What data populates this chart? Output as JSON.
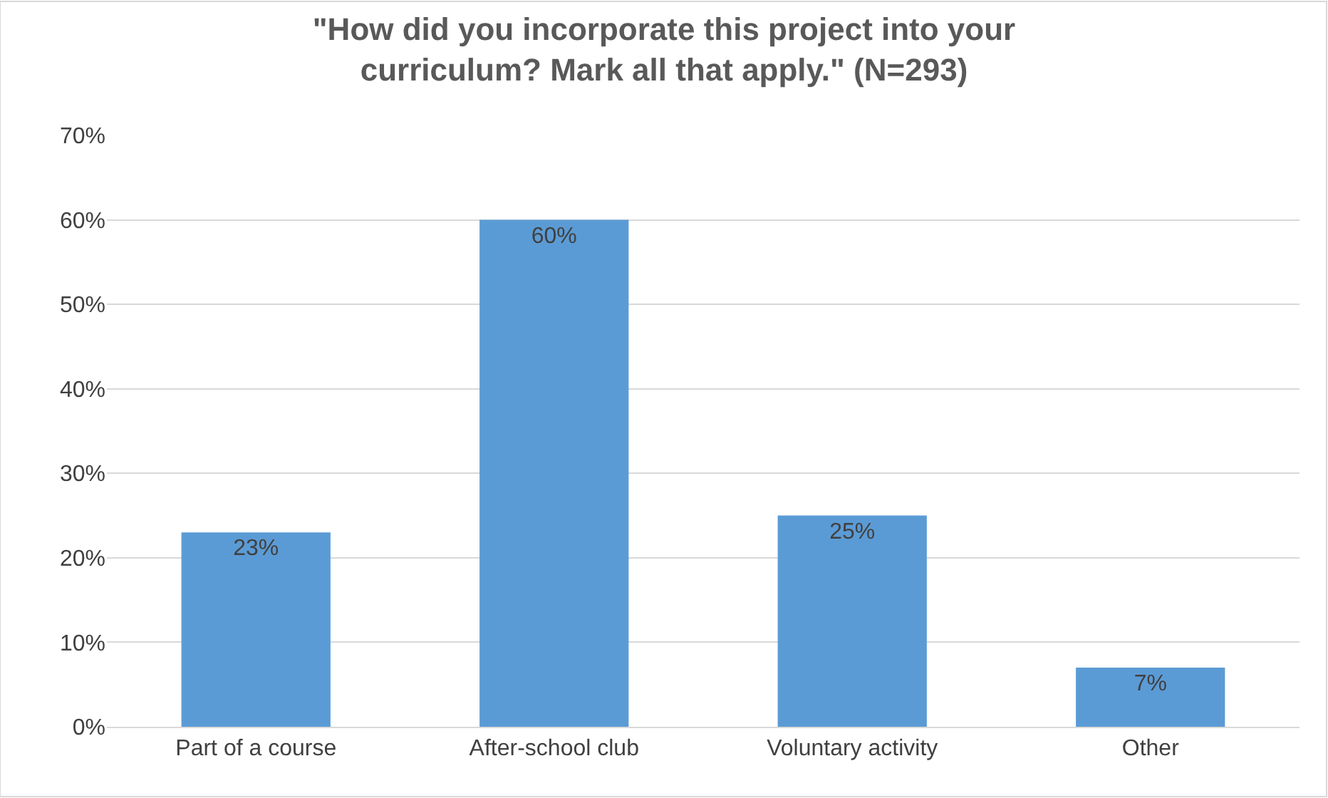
{
  "chart_data": {
    "type": "bar",
    "title": "\"How did you incorporate this project into your curriculum? Mark all that apply.\" (N=293)",
    "categories": [
      "Part of a course",
      "After-school club",
      "Voluntary activity",
      "Other"
    ],
    "values": [
      23,
      60,
      25,
      7
    ],
    "value_labels": [
      "23%",
      "60%",
      "25%",
      "7%"
    ],
    "color": "#5b9bd5",
    "ylim": [
      0,
      70
    ],
    "yticks": [
      {
        "value": 0,
        "label": "0%"
      },
      {
        "value": 10,
        "label": "10%"
      },
      {
        "value": 20,
        "label": "20%"
      },
      {
        "value": 30,
        "label": "30%"
      },
      {
        "value": 40,
        "label": "40%"
      },
      {
        "value": 50,
        "label": "50%"
      },
      {
        "value": 60,
        "label": "60%"
      },
      {
        "value": 70,
        "label": "70%"
      }
    ],
    "grid": "y",
    "legend": false
  }
}
